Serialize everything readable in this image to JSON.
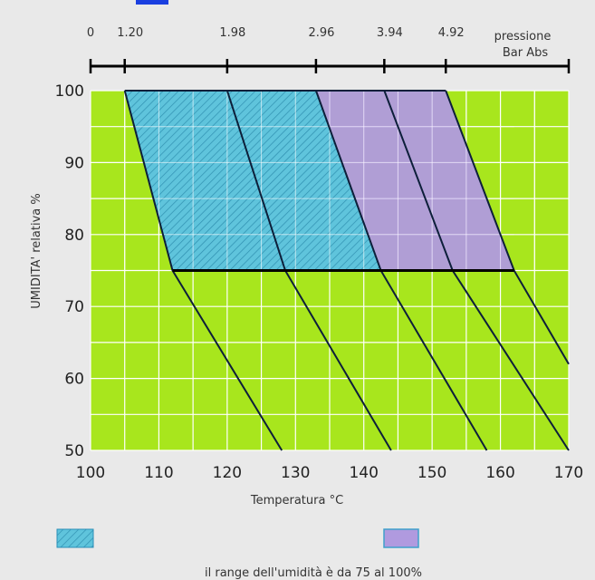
{
  "chart_data": {
    "type": "line",
    "xlabel": "Temperatura °C",
    "ylabel": "UMIDITA' relativa %",
    "xlim": [
      100,
      170
    ],
    "ylim": [
      50,
      100
    ],
    "x_ticks": [
      "100",
      "110",
      "120",
      "130",
      "140",
      "150",
      "160",
      "170"
    ],
    "y_ticks": [
      "50",
      "60",
      "70",
      "80",
      "90",
      "100"
    ],
    "grid": true,
    "top_axis": {
      "label_line1": "pressione",
      "label_line2": "Bar Abs",
      "ticks": [
        {
          "label": "0",
          "temp": 100
        },
        {
          "label": "1.20",
          "temp": 105
        },
        {
          "label": "1.98",
          "temp": 120
        },
        {
          "label": "2.96",
          "temp": 133
        },
        {
          "label": "3.94",
          "temp": 143
        },
        {
          "label": "4.92",
          "temp": 152
        }
      ]
    },
    "series": [
      {
        "points": [
          [
            105,
            100
          ],
          [
            112,
            75
          ],
          [
            128,
            50
          ]
        ]
      },
      {
        "points": [
          [
            120,
            100
          ],
          [
            128.5,
            75
          ],
          [
            144,
            50
          ]
        ]
      },
      {
        "points": [
          [
            133,
            100
          ],
          [
            142.5,
            75
          ],
          [
            158,
            50
          ]
        ]
      },
      {
        "points": [
          [
            143,
            100
          ],
          [
            153,
            75
          ],
          [
            170,
            50
          ]
        ]
      },
      {
        "points": [
          [
            152,
            100
          ],
          [
            162,
            75
          ],
          [
            170,
            62
          ]
        ]
      }
    ],
    "regions": [
      {
        "pattern": "hatched-blue",
        "polygon": [
          [
            105,
            100
          ],
          [
            133,
            100
          ],
          [
            142.5,
            75
          ],
          [
            112,
            75
          ]
        ]
      },
      {
        "pattern": "purple",
        "polygon": [
          [
            133,
            100
          ],
          [
            152,
            100
          ],
          [
            162,
            75
          ],
          [
            142.5,
            75
          ]
        ]
      }
    ],
    "threshold_line": {
      "y": 75,
      "x_from": 112,
      "x_to": 162
    },
    "colors": {
      "background": "#a8e61d",
      "hatched_region": "#5fc4dc",
      "purple_region": "#b09adf",
      "lines": "#0d1f3a",
      "grid": "#ffffff"
    }
  },
  "legend": {
    "caption": "il range dell'umidità è da 75 al 100%"
  }
}
